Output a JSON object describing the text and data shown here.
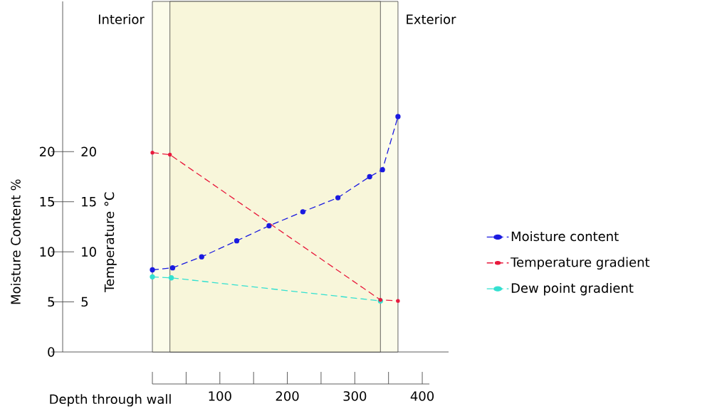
{
  "chart_data": {
    "type": "line",
    "xlabel": "Depth through wall",
    "ylabel": "Moisture Content %",
    "y2label": "Temperature °C",
    "annotations": [
      "Interior",
      "Exterior"
    ],
    "xlim": [
      -133,
      439
    ],
    "xticks": [
      {
        "value": 0,
        "label": null
      },
      100,
      200,
      300,
      400
    ],
    "ylim": [
      0,
      35
    ],
    "yticks": [
      0,
      5,
      10,
      15,
      20
    ],
    "y2lim": [
      0,
      35
    ],
    "y2ticks": [
      5,
      10,
      15,
      20
    ],
    "bands": [
      {
        "axis": "x",
        "from": 0,
        "to": 364,
        "color": "#fcfcea"
      },
      {
        "axis": "x",
        "from": 26,
        "to": 338,
        "color": "#f8f6da"
      }
    ],
    "marker": "circle",
    "line_style": "dashed",
    "legend": "right",
    "series": [
      {
        "name": "Moisture content",
        "color": "#1a1ae0",
        "x": [
          0,
          30,
          73,
          125,
          173,
          223,
          275,
          322,
          341,
          364
        ],
        "values": [
          8.2,
          8.4,
          9.5,
          11.1,
          12.6,
          14.0,
          15.4,
          17.5,
          18.2,
          23.5
        ]
      },
      {
        "name": "Temperature gradient",
        "color": "#e8193c",
        "axis": "y2",
        "x": [
          0,
          26,
          338,
          364
        ],
        "values": [
          19.9,
          19.7,
          5.2,
          5.1
        ]
      },
      {
        "name": "Dew point gradient",
        "color": "#33e0d0",
        "x": [
          0,
          28,
          338
        ],
        "values": [
          7.5,
          7.4,
          5.1
        ]
      }
    ]
  }
}
